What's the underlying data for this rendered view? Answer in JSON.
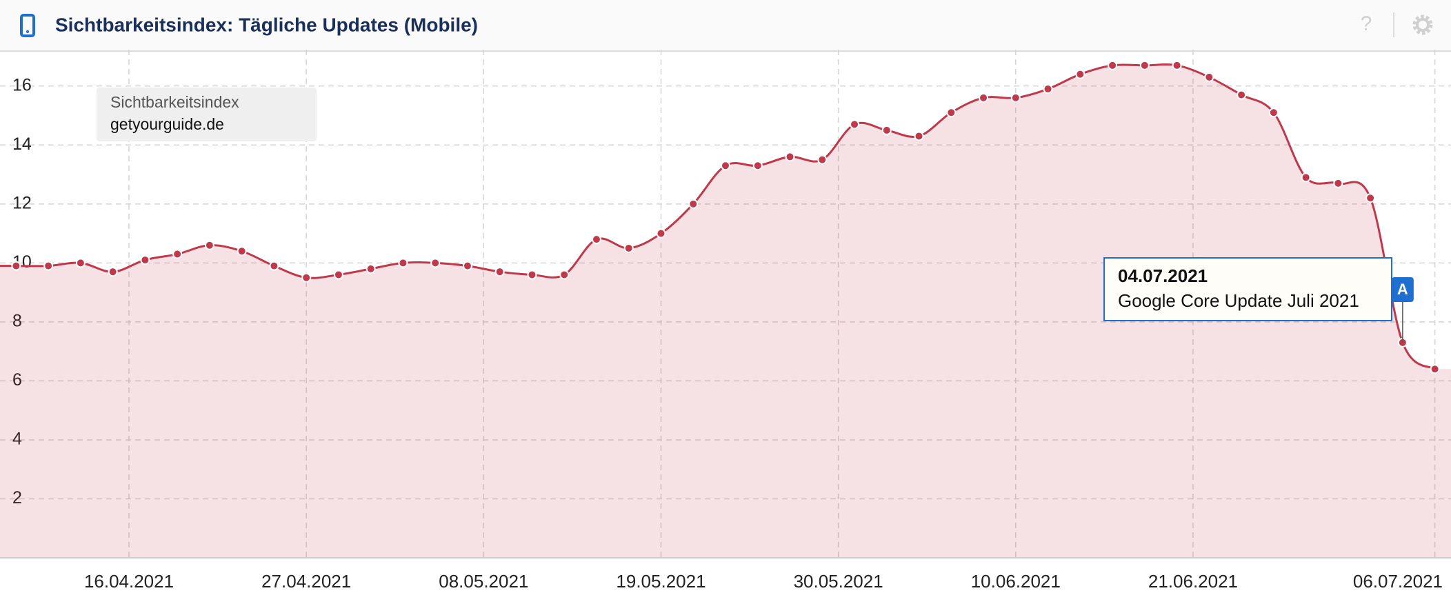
{
  "chart_data": {
    "type": "line",
    "title": "Sichtbarkeitsindex: Tägliche Updates (Mobile)",
    "help_icon": "?",
    "legend": {
      "label": "Sichtbarkeitsindex",
      "domain": "getyourguide.de"
    },
    "x": [
      "09.04.2021",
      "11.04.2021",
      "13.04.2021",
      "15.04.2021",
      "17.04.2021",
      "19.04.2021",
      "21.04.2021",
      "23.04.2021",
      "25.04.2021",
      "27.04.2021",
      "29.04.2021",
      "01.05.2021",
      "03.05.2021",
      "05.05.2021",
      "07.05.2021",
      "09.05.2021",
      "11.05.2021",
      "13.05.2021",
      "15.05.2021",
      "17.05.2021",
      "19.05.2021",
      "21.05.2021",
      "23.05.2021",
      "25.05.2021",
      "27.05.2021",
      "29.05.2021",
      "31.05.2021",
      "02.06.2021",
      "04.06.2021",
      "06.06.2021",
      "08.06.2021",
      "10.06.2021",
      "12.06.2021",
      "14.06.2021",
      "16.06.2021",
      "18.06.2021",
      "20.06.2021",
      "22.06.2021",
      "24.06.2021",
      "26.06.2021",
      "28.06.2021",
      "30.06.2021",
      "02.07.2021",
      "04.07.2021",
      "06.07.2021"
    ],
    "series": [
      {
        "name": "getyourguide.de",
        "color": "#c0394b",
        "values": [
          9.9,
          9.9,
          10.0,
          9.7,
          10.1,
          10.3,
          10.6,
          10.4,
          9.9,
          9.5,
          9.6,
          9.8,
          10.0,
          10.0,
          9.9,
          9.7,
          9.6,
          9.6,
          10.8,
          10.5,
          11.0,
          12.0,
          13.3,
          13.3,
          13.6,
          13.5,
          14.7,
          14.5,
          14.3,
          15.1,
          15.6,
          15.6,
          15.9,
          16.4,
          16.7,
          16.7,
          16.7,
          16.3,
          15.7,
          15.1,
          12.9,
          12.7,
          12.2,
          7.3,
          6.4
        ]
      }
    ],
    "xlim": [
      "08.04.2021",
      "07.07.2021"
    ],
    "xticks": [
      "16.04.2021",
      "27.04.2021",
      "08.05.2021",
      "19.05.2021",
      "30.05.2021",
      "10.06.2021",
      "21.06.2021",
      "06.07.2021"
    ],
    "ylim": [
      0,
      17
    ],
    "yticks": [
      2,
      4,
      6,
      8,
      10,
      12,
      14,
      16
    ],
    "grid": true,
    "annotation": {
      "marker": "A",
      "date": "04.07.2021",
      "text": "Google Core Update Juli 2021"
    }
  }
}
